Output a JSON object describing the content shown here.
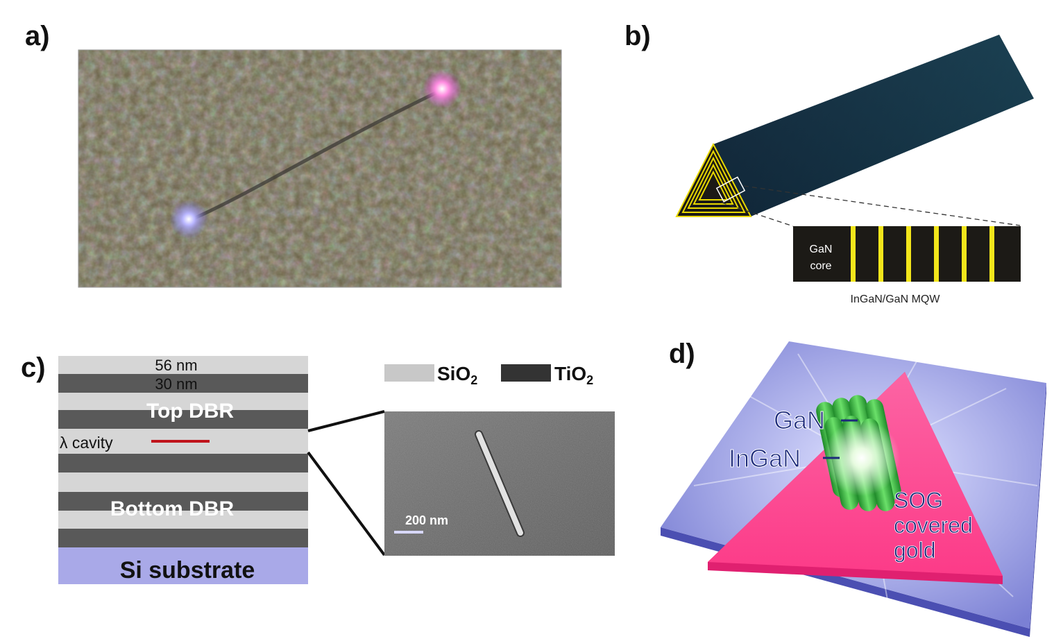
{
  "panels": {
    "a": {
      "label": "a)"
    },
    "b": {
      "label": "b)",
      "core_line1": "GaN",
      "core_line2": "core",
      "mqw_caption": "InGaN/GaN MQW"
    },
    "c": {
      "label": "c)",
      "thickness_top": "56 nm",
      "thickness_second": "30 nm",
      "top_dbr": "Top DBR",
      "cavity": "λ cavity",
      "bottom_dbr": "Bottom DBR",
      "substrate": "Si substrate",
      "legend_sio2": "SiO",
      "legend_sio2_sub": "2",
      "legend_tio2": "TiO",
      "legend_tio2_sub": "2",
      "scale_bar": "200 nm"
    },
    "d": {
      "label": "d)",
      "gan": "GaN",
      "ingan": "InGaN",
      "sog_line1": "SOG",
      "sog_line2": "covered",
      "sog_line3": "gold"
    }
  }
}
